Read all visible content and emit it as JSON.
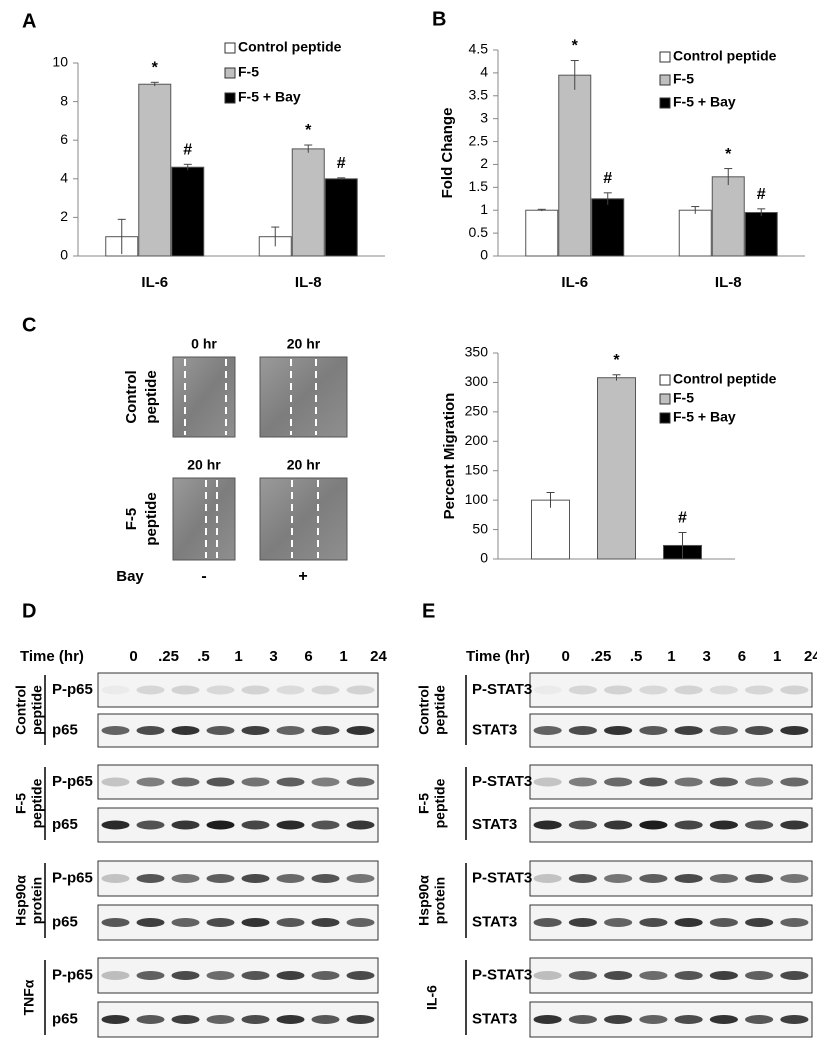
{
  "chart_data": [
    {
      "type": "bar",
      "panel": "A",
      "categories": [
        "IL-6",
        "IL-8"
      ],
      "series": [
        {
          "name": "Control peptide",
          "color": "#ffffff",
          "values": [
            1,
            1
          ],
          "errors": [
            0.9,
            0.5
          ]
        },
        {
          "name": "F-5",
          "color": "#bfbfbf",
          "values": [
            8.9,
            5.55
          ],
          "errors": [
            0.1,
            0.2
          ],
          "notes": [
            "*",
            "*"
          ]
        },
        {
          "name": "F-5 + Bay",
          "color": "#000000",
          "values": [
            4.6,
            4.0
          ],
          "errors": [
            0.15,
            0.05
          ],
          "notes": [
            "#",
            "#"
          ]
        }
      ],
      "ylim": [
        0,
        10
      ],
      "yticks": [
        0,
        2,
        4,
        6,
        8,
        10
      ]
    },
    {
      "type": "bar",
      "panel": "B",
      "ylabel": "Fold Change",
      "categories": [
        "IL-6",
        "IL-8"
      ],
      "series": [
        {
          "name": "Control peptide",
          "color": "#ffffff",
          "values": [
            1,
            1
          ],
          "errors": [
            0.02,
            0.08
          ]
        },
        {
          "name": "F-5",
          "color": "#bfbfbf",
          "values": [
            3.95,
            1.73
          ],
          "errors": [
            0.32,
            0.18
          ],
          "notes": [
            "*",
            "*"
          ]
        },
        {
          "name": "F-5 + Bay",
          "color": "#000000",
          "values": [
            1.25,
            0.95
          ],
          "errors": [
            0.13,
            0.08
          ],
          "notes": [
            "#",
            "#"
          ]
        }
      ],
      "ylim": [
        0,
        4.5
      ],
      "yticks": [
        0,
        0.5,
        1,
        1.5,
        2,
        2.5,
        3,
        3.5,
        4,
        4.5
      ]
    },
    {
      "type": "bar",
      "panel": "C",
      "ylabel": "Percent Migration",
      "categories": [
        null
      ],
      "series": [
        {
          "name": "Control peptide",
          "color": "#ffffff",
          "values": [
            100
          ],
          "errors": [
            13
          ]
        },
        {
          "name": "F-5",
          "color": "#bfbfbf",
          "values": [
            308
          ],
          "errors": [
            5
          ],
          "notes": [
            "*"
          ]
        },
        {
          "name": "F-5 + Bay",
          "color": "#000000",
          "values": [
            23
          ],
          "errors": [
            22
          ],
          "notes": [
            "#"
          ]
        }
      ],
      "ylim": [
        0,
        350
      ],
      "yticks": [
        0,
        50,
        100,
        150,
        200,
        250,
        300,
        350
      ]
    }
  ],
  "wound_assay": {
    "column_headers": [
      [
        "0 hr",
        "20 hr"
      ],
      [
        "20 hr",
        "20 hr"
      ]
    ],
    "row_labels": [
      [
        "Control",
        "peptide"
      ],
      [
        "F-5",
        "peptide"
      ]
    ],
    "treatment_label": "Bay",
    "treatment_values": [
      "-",
      "+"
    ]
  },
  "blots": [
    {
      "panel": "D",
      "time_label": "Time (hr)",
      "times": [
        "0",
        ".25",
        ".5",
        "1",
        "3",
        "6",
        "1",
        "24"
      ],
      "groups": [
        {
          "label": [
            "Control",
            "peptide"
          ],
          "rows": [
            "P-p65",
            "p65"
          ]
        },
        {
          "label": [
            "F-5",
            "peptide"
          ],
          "rows": [
            "P-p65",
            "p65"
          ]
        },
        {
          "label": [
            "Hsp90α",
            "protein"
          ],
          "rows": [
            "P-p65",
            "p65"
          ]
        },
        {
          "label": [
            "TNFα"
          ],
          "rows": [
            "P-p65",
            "p65"
          ]
        }
      ]
    },
    {
      "panel": "E",
      "time_label": "Time (hr)",
      "times": [
        "0",
        ".25",
        ".5",
        "1",
        "3",
        "6",
        "1",
        "24"
      ],
      "groups": [
        {
          "label": [
            "Control",
            "peptide"
          ],
          "rows": [
            "P-STAT3",
            "STAT3"
          ]
        },
        {
          "label": [
            "F-5",
            "peptide"
          ],
          "rows": [
            "P-STAT3",
            "STAT3"
          ]
        },
        {
          "label": [
            "Hsp90α",
            "protein"
          ],
          "rows": [
            "P-STAT3",
            "STAT3"
          ]
        },
        {
          "label": [
            "IL-6"
          ],
          "rows": [
            "P-STAT3",
            "STAT3"
          ]
        }
      ]
    }
  ]
}
